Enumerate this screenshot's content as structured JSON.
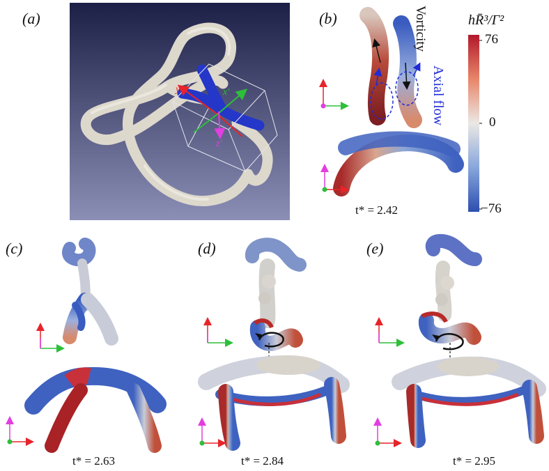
{
  "panels": {
    "a": {
      "label": "(a)",
      "axis_labels": {
        "x": "x′",
        "y": "y′",
        "z": "z′"
      }
    },
    "b": {
      "label": "(b)",
      "time": "t* = 2.42",
      "annotations": {
        "vorticity": "Vorticity",
        "axial_flow": "Axial flow"
      }
    },
    "c": {
      "label": "(c)",
      "time": "t* = 2.63"
    },
    "d": {
      "label": "(d)",
      "time": "t* = 2.84"
    },
    "e": {
      "label": "(e)",
      "time": "t* = 2.95"
    }
  },
  "colorbar": {
    "title": "hR̄³/Γ²",
    "max_label": "76",
    "zero_label": "0",
    "min_label": "−76",
    "colors": {
      "max": "#b2182b",
      "mid": "#e8e6e2",
      "min": "#2c4fb0"
    }
  },
  "colors": {
    "tube": "#e4e0d6",
    "panel_a_bg_top": "#1c1f46",
    "panel_a_bg_bottom": "#8b8fb6",
    "axis_red": "#e8232a",
    "axis_green": "#2dbf3a",
    "axis_magenta": "#e23ee0",
    "axial_blue": "#1f2bd6"
  }
}
